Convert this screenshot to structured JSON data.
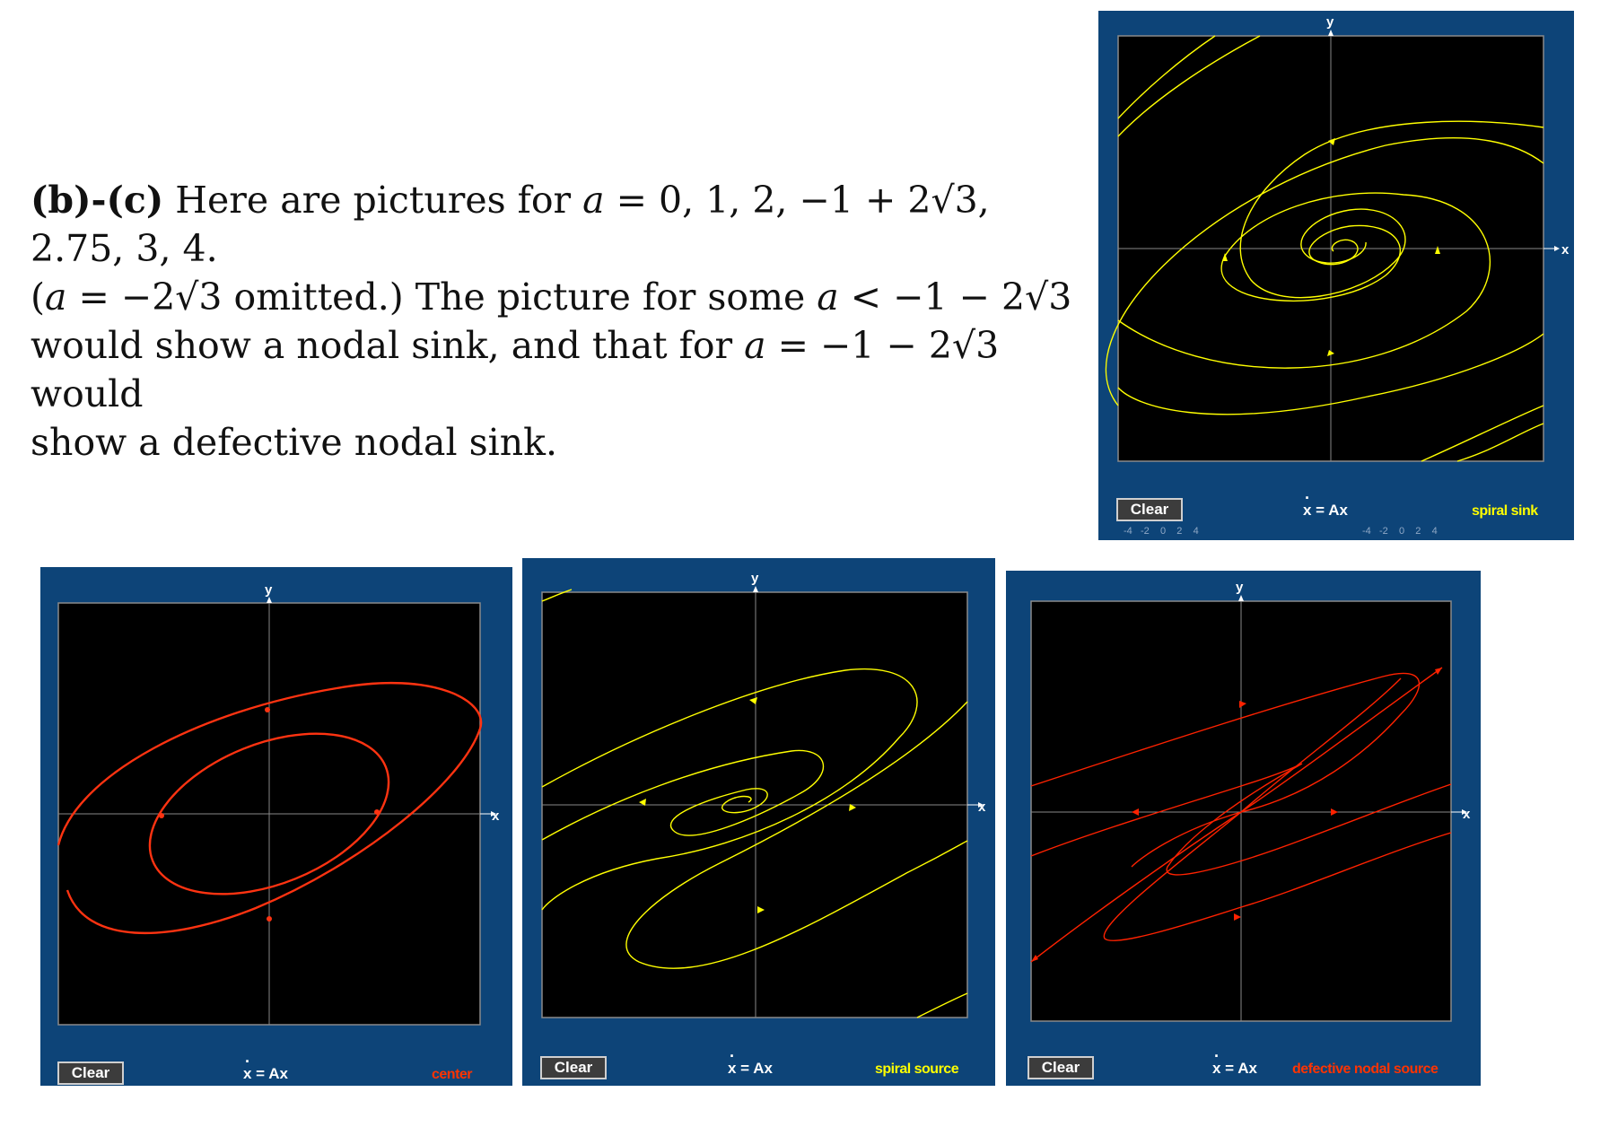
{
  "text": {
    "label": "(b)-(c)",
    "s1": " Here are pictures for ",
    "a": "a",
    "s2": " = 0, 1, 2, −1 + 2√3, 2.75, 3, 4.",
    "s3": "(",
    "s4": " = −2√3 omitted.) The picture for some ",
    "s5": " < −1 − 2√3",
    "s6": "would show a nodal sink, and that for ",
    "s7": " = −1 − 2√3 would",
    "s8": "show a defective nodal sink."
  },
  "panels": [
    {
      "id": "spiral-sink",
      "clear": "Clear",
      "equation": "x = Ax",
      "type": "spiral sink",
      "type_color": "#ffff00",
      "curve_color": "#ffff00",
      "x_axis": "x",
      "y_axis": "y",
      "ticks_left": "-4   -2    0    2    4",
      "ticks_right": "-4   -2    0    2    4"
    },
    {
      "id": "center",
      "clear": "Clear",
      "equation": "x = Ax",
      "type": "center",
      "type_color": "#ff3300",
      "curve_color": "#ff3311",
      "x_axis": "x",
      "y_axis": "y"
    },
    {
      "id": "spiral-source",
      "clear": "Clear",
      "equation": "x = Ax",
      "type": "spiral source",
      "type_color": "#ffff00",
      "curve_color": "#ffff00",
      "x_axis": "x",
      "y_axis": "y"
    },
    {
      "id": "defective-nodal-source",
      "clear": "Clear",
      "equation": "x = Ax",
      "type": "defective nodal source",
      "type_color": "#ff3300",
      "curve_color": "#ff2200",
      "x_axis": "x",
      "y_axis": "y"
    }
  ]
}
